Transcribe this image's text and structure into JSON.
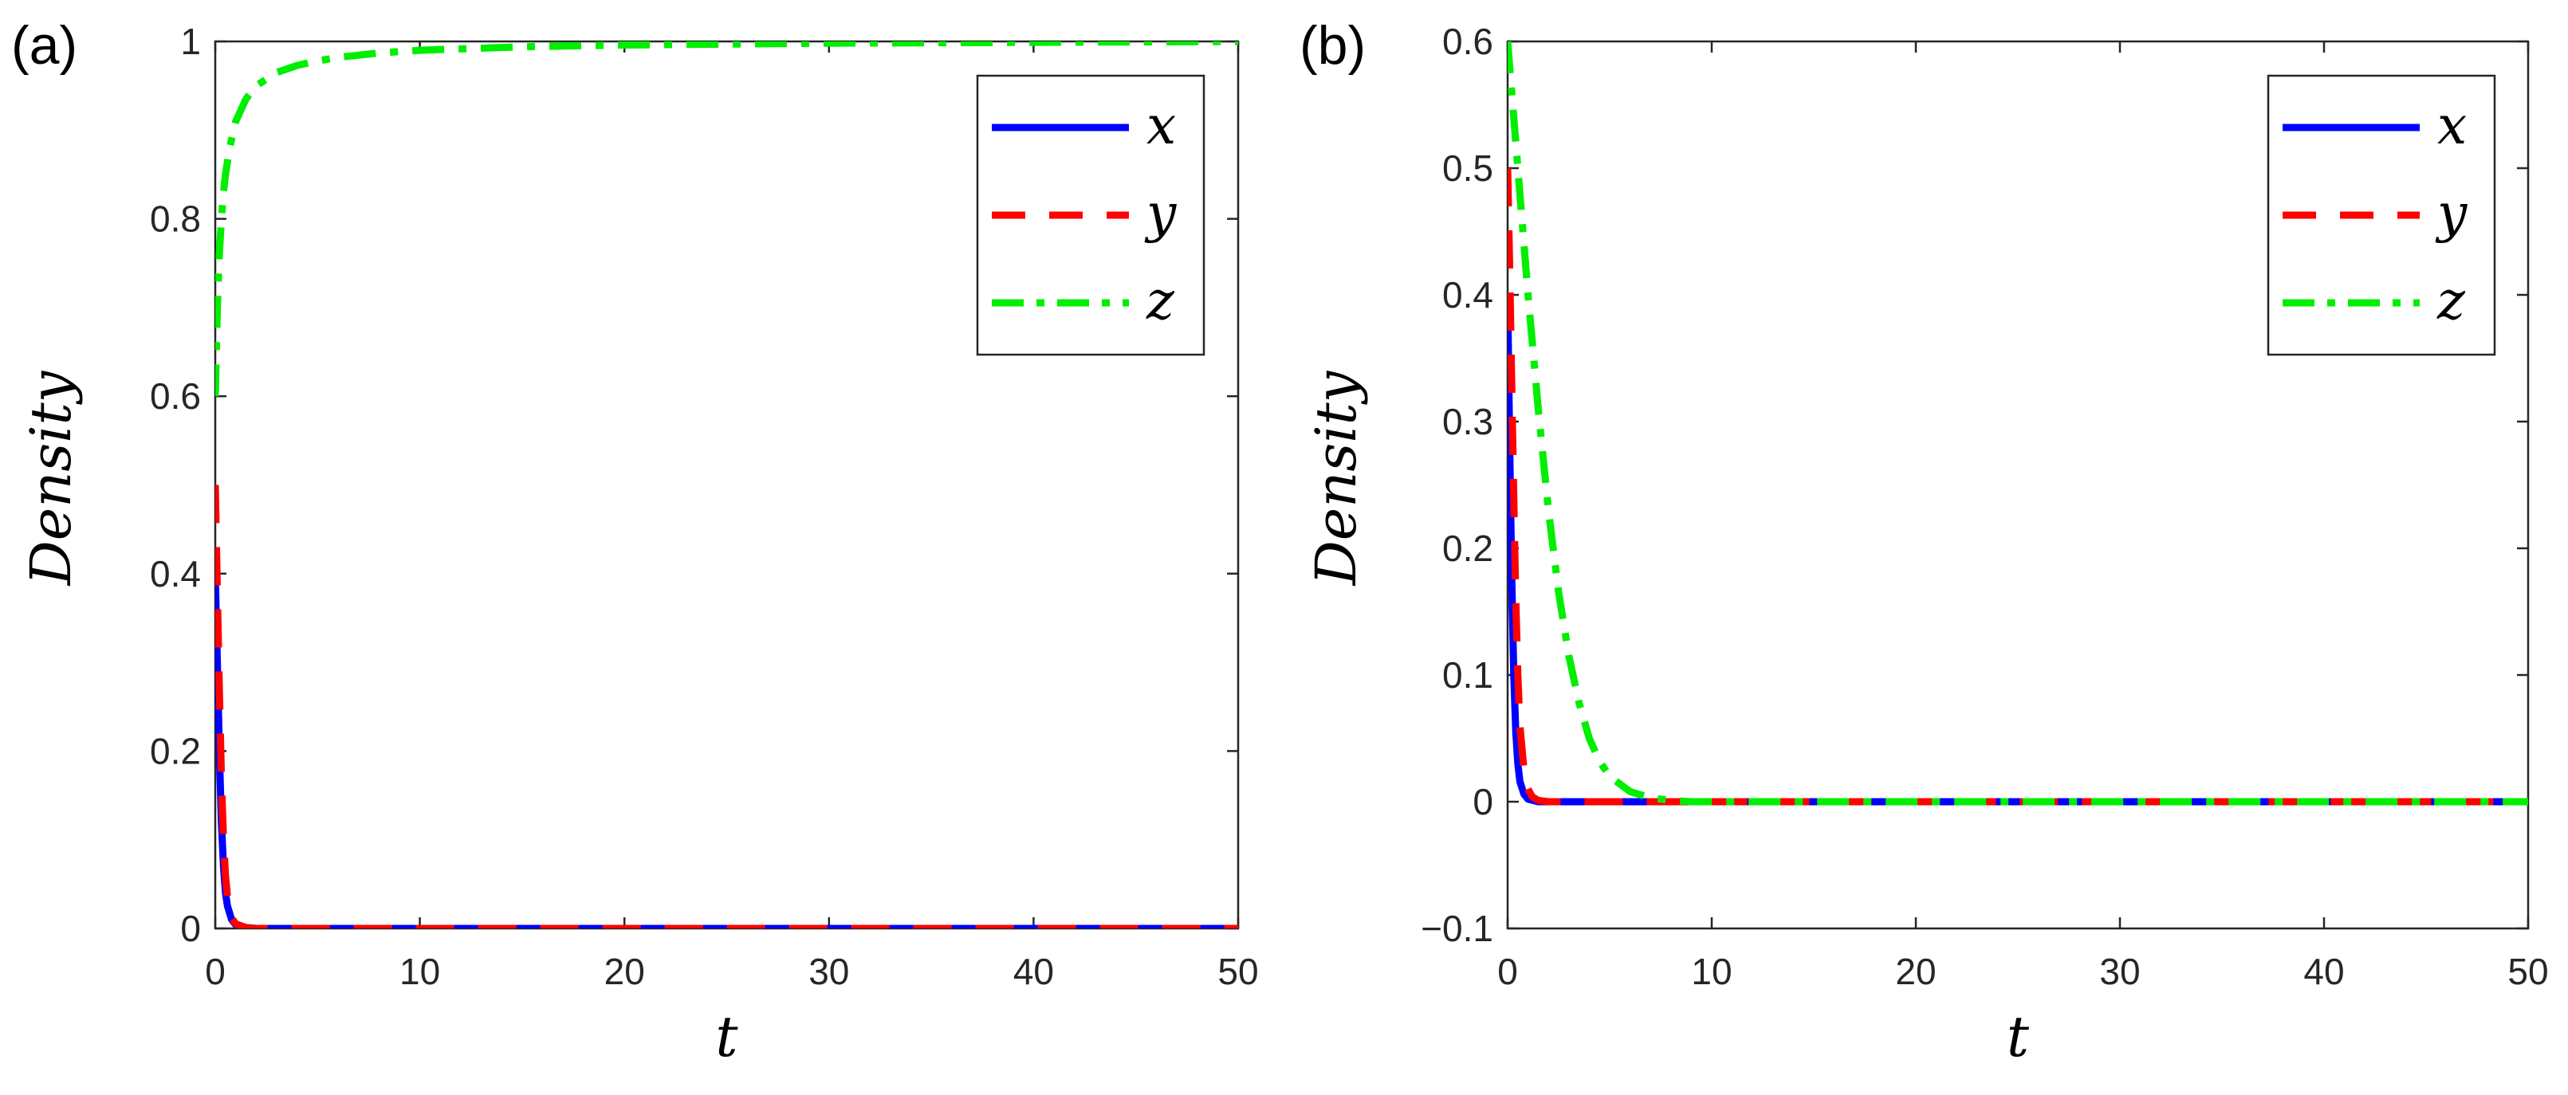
{
  "panels": [
    {
      "label": "(a)",
      "chart_data": {
        "type": "line",
        "xlabel": "t",
        "ylabel": "Density",
        "xlim": [
          0,
          50
        ],
        "ylim": [
          0,
          1
        ],
        "xticks": [
          0,
          10,
          20,
          30,
          40,
          50
        ],
        "yticks": [
          0,
          0.2,
          0.4,
          0.6,
          0.8,
          1
        ],
        "ytick_labels": [
          "0",
          "0.2",
          "0.4",
          "0.6",
          "0.8",
          "1"
        ],
        "legend_position": "top-right",
        "series": [
          {
            "name": "x",
            "color": "#0000ff",
            "style": "solid",
            "x": [
              0,
              0.1,
              0.2,
              0.3,
              0.4,
              0.5,
              0.6,
              0.8,
              1,
              1.5,
              2,
              5,
              10,
              20,
              30,
              40,
              50
            ],
            "y": [
              0.4,
              0.3,
              0.2,
              0.12,
              0.07,
              0.04,
              0.025,
              0.01,
              0.004,
              0.001,
              0,
              0,
              0,
              0,
              0,
              0,
              0
            ]
          },
          {
            "name": "y",
            "color": "#ff0000",
            "style": "dashed",
            "x": [
              0,
              0.1,
              0.2,
              0.3,
              0.4,
              0.5,
              0.6,
              0.8,
              1,
              1.5,
              2,
              5,
              10,
              20,
              30,
              40,
              50
            ],
            "y": [
              0.5,
              0.38,
              0.27,
              0.17,
              0.1,
              0.06,
              0.035,
              0.012,
              0.005,
              0.001,
              0,
              0,
              0,
              0,
              0,
              0,
              0
            ]
          },
          {
            "name": "z",
            "color": "#00ee00",
            "style": "dashdot",
            "x": [
              0,
              0.1,
              0.2,
              0.3,
              0.4,
              0.5,
              0.7,
              1,
              1.5,
              2,
              3,
              4,
              5,
              6,
              8,
              10,
              15,
              20,
              30,
              40,
              50
            ],
            "y": [
              0.6,
              0.7,
              0.76,
              0.8,
              0.83,
              0.85,
              0.88,
              0.91,
              0.935,
              0.95,
              0.965,
              0.973,
              0.978,
              0.982,
              0.987,
              0.99,
              0.994,
              0.996,
              0.998,
              0.999,
              1.0
            ]
          }
        ]
      }
    },
    {
      "label": "(b)",
      "chart_data": {
        "type": "line",
        "xlabel": "t",
        "ylabel": "Density",
        "xlim": [
          0,
          50
        ],
        "ylim": [
          -0.1,
          0.6
        ],
        "xticks": [
          0,
          10,
          20,
          30,
          40,
          50
        ],
        "yticks": [
          -0.1,
          0,
          0.1,
          0.2,
          0.3,
          0.4,
          0.5,
          0.6
        ],
        "ytick_labels": [
          "−0.1",
          "0",
          "0.1",
          "0.2",
          "0.3",
          "0.4",
          "0.5",
          "0.6"
        ],
        "legend_position": "top-right",
        "series": [
          {
            "name": "x",
            "color": "#0000ff",
            "style": "solid",
            "x": [
              0,
              0.1,
              0.2,
              0.3,
              0.4,
              0.5,
              0.6,
              0.8,
              1,
              1.5,
              2,
              5,
              10,
              20,
              30,
              40,
              50
            ],
            "y": [
              0.4,
              0.28,
              0.18,
              0.1,
              0.055,
              0.03,
              0.016,
              0.006,
              0.002,
              0,
              0,
              0,
              0,
              0,
              0,
              0,
              0
            ]
          },
          {
            "name": "y",
            "color": "#ff0000",
            "style": "dashed",
            "x": [
              0,
              0.1,
              0.2,
              0.3,
              0.4,
              0.5,
              0.6,
              0.8,
              1,
              1.2,
              1.5,
              2,
              5,
              10,
              20,
              30,
              40,
              50
            ],
            "y": [
              0.5,
              0.42,
              0.33,
              0.24,
              0.16,
              0.1,
              0.06,
              0.025,
              0.01,
              0.004,
              0.001,
              0,
              0,
              0,
              0,
              0,
              0,
              0
            ]
          },
          {
            "name": "z",
            "color": "#00ee00",
            "style": "dashdot",
            "x": [
              0,
              0.5,
              1,
              1.5,
              2,
              2.5,
              3,
              3.5,
              4,
              4.5,
              5,
              6,
              7,
              8,
              9,
              10,
              20,
              30,
              40,
              50
            ],
            "y": [
              0.6,
              0.5,
              0.4,
              0.31,
              0.23,
              0.165,
              0.115,
              0.078,
              0.05,
              0.032,
              0.02,
              0.008,
              0.003,
              0.001,
              0,
              0,
              0,
              0,
              0,
              0
            ]
          }
        ]
      }
    }
  ]
}
